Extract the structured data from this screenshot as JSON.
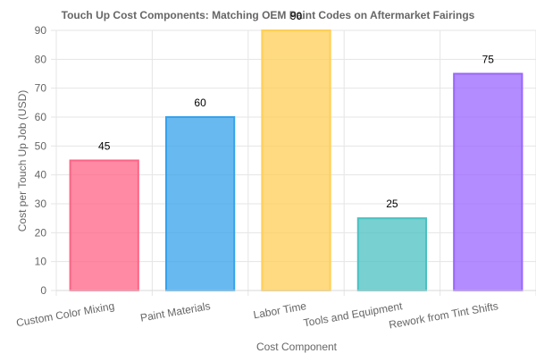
{
  "chart_data": {
    "type": "bar",
    "title": "Touch Up Cost Components: Matching OEM Paint Codes on Aftermarket Fairings",
    "xlabel": "Cost Component",
    "ylabel": "Cost per Touch Up Job (USD)",
    "categories": [
      "Custom Color Mixing",
      "Paint Materials",
      "Labor Time",
      "Tools and Equipment",
      "Rework from Tint Shifts"
    ],
    "values": [
      45,
      60,
      90,
      25,
      75
    ],
    "colors": [
      "#ff6384",
      "#36a2eb",
      "#ffce56",
      "#4bc0c0",
      "#9966ff"
    ],
    "ylim": [
      0,
      90
    ],
    "yticks": [
      0,
      10,
      20,
      30,
      40,
      50,
      60,
      70,
      80,
      90
    ],
    "grid": true,
    "legend": "none"
  }
}
